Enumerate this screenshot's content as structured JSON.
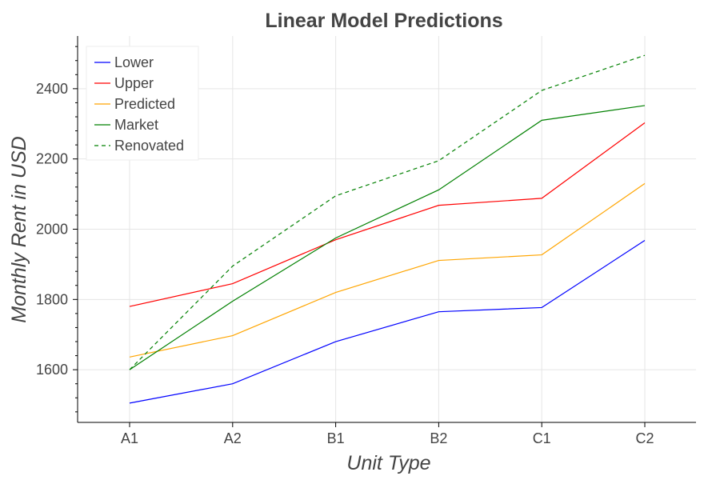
{
  "chart_data": {
    "type": "line",
    "title": "Linear Model Predictions",
    "xlabel": "Unit Type",
    "ylabel": "Monthly Rent in USD",
    "categories": [
      "A1",
      "A2",
      "B1",
      "B2",
      "C1",
      "C2"
    ],
    "ylim": [
      1450,
      2550
    ],
    "yticks": [
      1600,
      1800,
      2000,
      2200,
      2400
    ],
    "grid": true,
    "legend_position": "top-left",
    "series": [
      {
        "name": "Lower",
        "color": "#0000ff",
        "dash": "solid",
        "values": [
          1505,
          1560,
          1680,
          1765,
          1777,
          1968
        ]
      },
      {
        "name": "Upper",
        "color": "#ff0000",
        "dash": "solid",
        "values": [
          1780,
          1845,
          1970,
          2068,
          2088,
          2303
        ]
      },
      {
        "name": "Predicted",
        "color": "#ffa500",
        "dash": "solid",
        "values": [
          1636,
          1697,
          1820,
          1911,
          1927,
          2130
        ]
      },
      {
        "name": "Market",
        "color": "#008000",
        "dash": "solid",
        "values": [
          1600,
          1795,
          1975,
          2112,
          2310,
          2352
        ]
      },
      {
        "name": "Renovated",
        "color": "#008000",
        "dash": "dashed",
        "values": [
          1600,
          1895,
          2095,
          2195,
          2395,
          2495
        ]
      }
    ]
  }
}
